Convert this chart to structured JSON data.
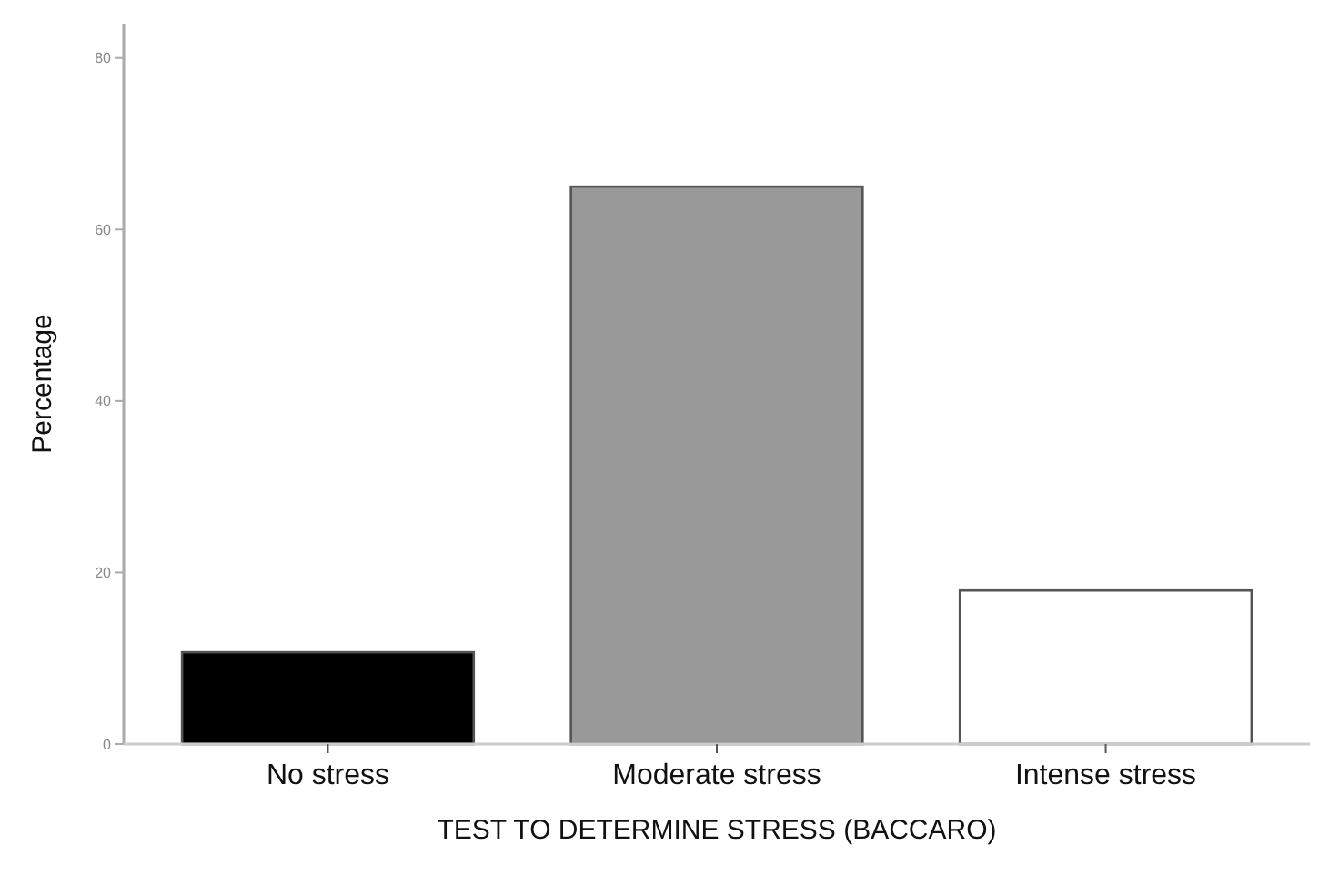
{
  "chart_data": {
    "type": "bar",
    "xlabel": "TEST TO DETERMINE STRESS (BACCARO)",
    "ylabel": "Percentage",
    "categories": [
      "No stress",
      "Moderate stress",
      "Intense stress"
    ],
    "values": [
      10.7,
      65,
      17.9
    ],
    "colors": [
      "#000000",
      "#999999",
      "#ffffff"
    ],
    "ylim": [
      0,
      84
    ],
    "yticks": [
      0,
      20,
      40,
      60,
      80
    ],
    "grid": false
  }
}
